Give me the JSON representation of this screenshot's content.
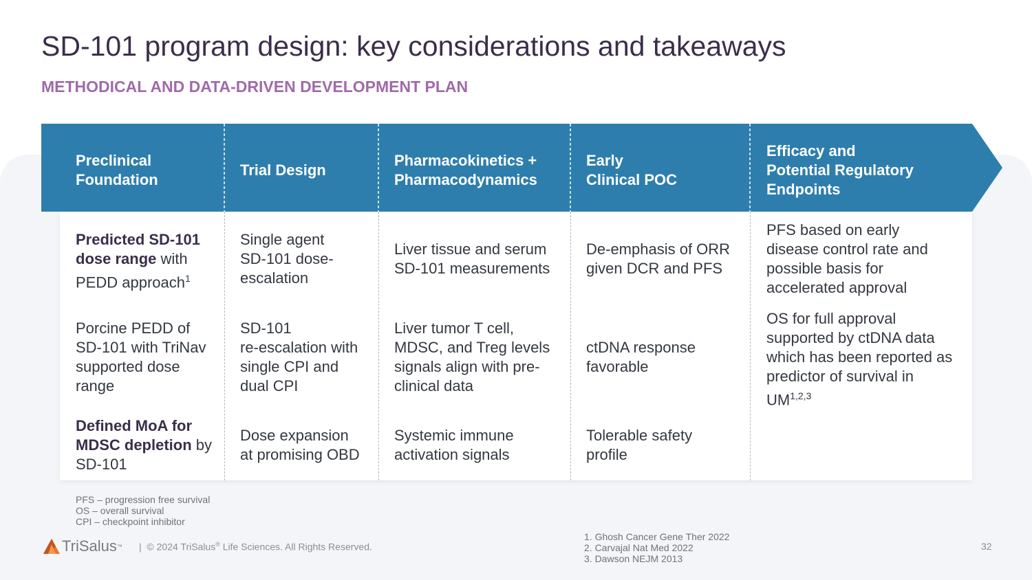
{
  "title": "SD-101 program design: key considerations and takeaways",
  "subtitle": "METHODICAL AND DATA-DRIVEN DEVELOPMENT PLAN",
  "colors": {
    "banner": "#2e7ead",
    "title": "#3b2e4a",
    "subtitle": "#a06aa9",
    "logo_orange": "#e8762b"
  },
  "columns": [
    {
      "header": "Preclinical\nFoundation",
      "cells": [
        {
          "bold": "Predicted SD-101 dose range",
          "text": " with PEDD approach",
          "sup": "1"
        },
        {
          "text": "Porcine PEDD of SD-101 with TriNav supported dose range"
        },
        {
          "bold": "Defined MoA for MDSC depletion",
          "text": " by SD-101"
        }
      ]
    },
    {
      "header": "Trial Design",
      "cells": [
        {
          "text": "Single agent\nSD-101 dose-\nescalation"
        },
        {
          "text": "SD-101\nre-escalation with\nsingle CPI and\ndual CPI"
        },
        {
          "text": "Dose expansion\nat promising OBD"
        }
      ]
    },
    {
      "header": "Pharmacokinetics +\nPharmacodynamics",
      "cells": [
        {
          "text": "Liver tissue and serum\nSD-101 measurements"
        },
        {
          "text": "Liver tumor T cell,\nMDSC, and Treg levels\nsignals align with pre-\nclinical data"
        },
        {
          "text": "Systemic immune\nactivation signals"
        }
      ]
    },
    {
      "header": "Early\nClinical POC",
      "cells": [
        {
          "text": "De-emphasis of ORR\ngiven DCR and PFS"
        },
        {
          "text": "ctDNA response\nfavorable"
        },
        {
          "text": "Tolerable safety\nprofile"
        }
      ]
    },
    {
      "header": "Efficacy and\nPotential Regulatory\nEndpoints",
      "cells": [
        {
          "text": "PFS based on early\ndisease control rate and\npossible basis for\naccelerated approval"
        },
        {
          "text": "OS for full approval\nsupported by ctDNA data\nwhich has been reported as\npredictor of survival in\nUM",
          "sup": "1,2,3"
        }
      ]
    }
  ],
  "abbreviations": [
    "PFS – progression free survival",
    "OS – overall survival",
    "CPI – checkpoint inhibitor"
  ],
  "footer": {
    "logo_text": "TriSalus",
    "logo_tm": "™",
    "separator": "|",
    "copyright_pre": "© 2024 TriSalus",
    "copyright_reg": "®",
    "copyright_post": " Life Sciences. All Rights Reserved.",
    "references": [
      "1.  Ghosh Cancer Gene Ther 2022",
      "2.  Carvajal Nat Med 2022",
      "3.  Dawson NEJM 2013"
    ],
    "page_number": "32"
  }
}
